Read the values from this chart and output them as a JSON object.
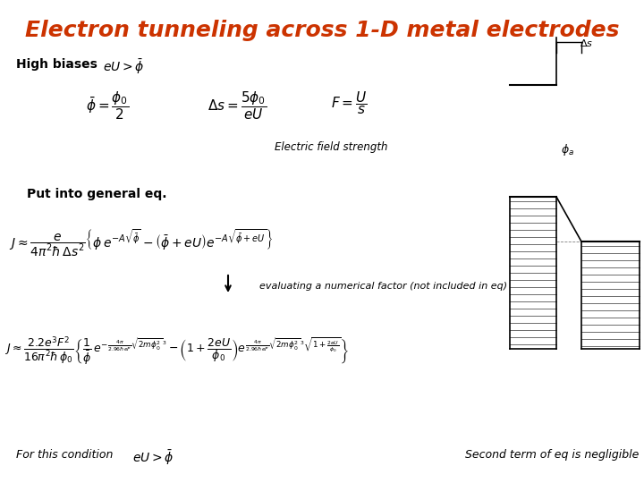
{
  "title": "Electron tunneling across 1-D metal electrodes",
  "title_color": "#CC3300",
  "title_fontsize": 18,
  "bg_color": "#FFFFFF",
  "text_color": "#000000",
  "high_biases_label": "High biases",
  "ef_label": "Electric field strength",
  "put_into": "Put into general eq.",
  "arrow_note": "evaluating a numerical factor (not included in eq)",
  "for_condition": "For this condition",
  "second_term": "Second term of eq is negligible"
}
